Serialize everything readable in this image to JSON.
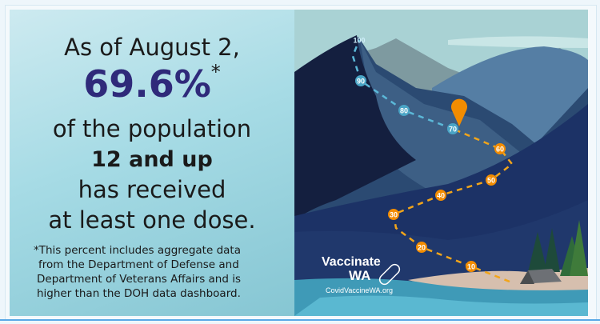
{
  "headline": {
    "line1": "As of August 2,",
    "percent": "69.6%",
    "asterisk": "*",
    "line3": "of the population",
    "line4": "12 and up",
    "line5": "has received",
    "line6": "at least one dose."
  },
  "footnote": [
    "*This percent includes aggregate data",
    "from the Department of Defense and",
    "Department of Veterans Affairs and is",
    "higher than the DOH data dashboard."
  ],
  "trail": {
    "markers": [
      "100",
      "90",
      "80",
      "70",
      "60",
      "50",
      "40",
      "30",
      "20",
      "10"
    ],
    "current_value": 69.6,
    "completed_color": "#f28c00",
    "remaining_color": "#5bb8d8"
  },
  "logo": {
    "line1": "Vaccinate",
    "line2": "WA",
    "url": "CovidVaccineWA.org"
  }
}
